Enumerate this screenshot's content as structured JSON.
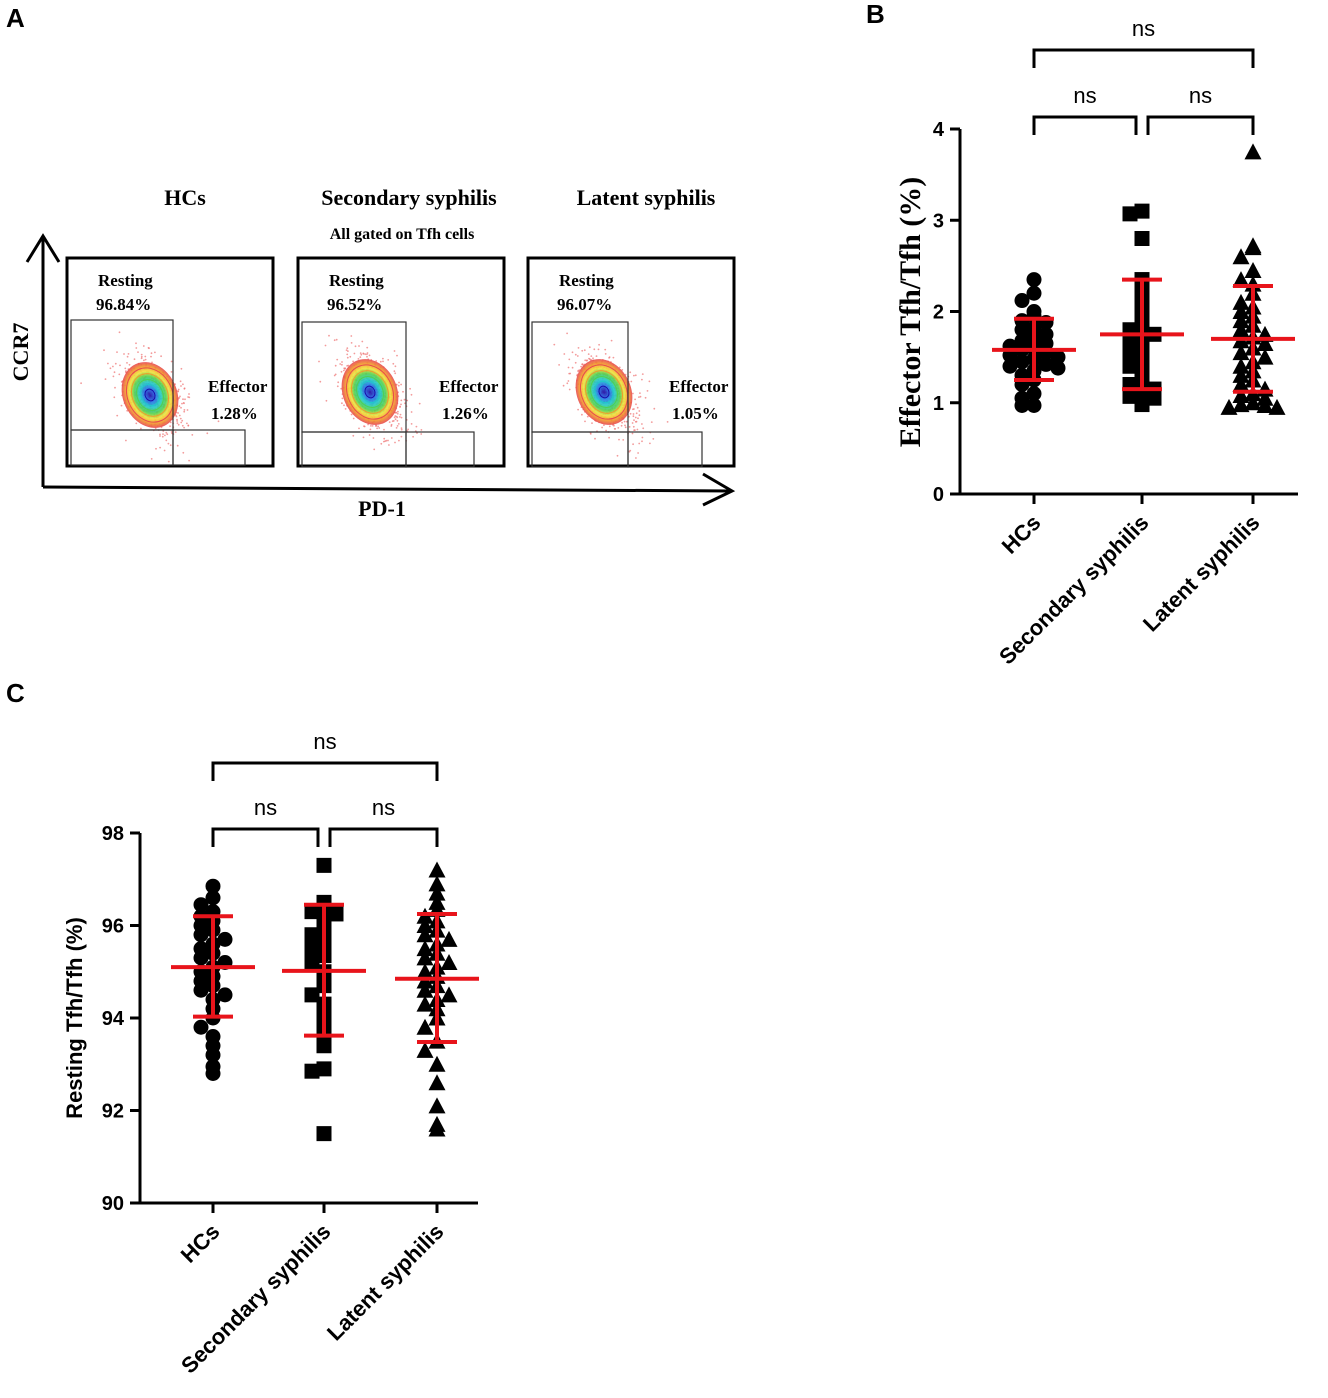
{
  "colors": {
    "ink": "#000000",
    "error_bar": "#e8141b",
    "gate_line": "#333333"
  },
  "panel_a": {
    "label": "A",
    "subtitle": "All gated on Tfh cells",
    "y_axis_label": "CCR7",
    "x_axis_label": "PD-1",
    "plots": [
      {
        "title": "HCs",
        "resting_label": "Resting",
        "resting_pct": "96.84%",
        "effector_label": "Effector",
        "effector_pct": "1.28%"
      },
      {
        "title": "Secondary syphilis",
        "resting_label": "Resting",
        "resting_pct": "96.52%",
        "effector_label": "Effector",
        "effector_pct": "1.26%"
      },
      {
        "title": "Latent syphilis",
        "resting_label": "Resting",
        "resting_pct": "96.07%",
        "effector_label": "Effector",
        "effector_pct": "1.05%"
      }
    ]
  },
  "chart_data": [
    {
      "panel": "B",
      "type": "scatter",
      "ylabel": "Effector Tfh/Tfh (%)",
      "ylim": [
        0,
        4
      ],
      "yticks": [
        "0",
        "1",
        "2",
        "3",
        "4"
      ],
      "categories": [
        "HCs",
        "Secondary syphilis",
        "Latent syphilis"
      ],
      "markers": [
        "circle",
        "square",
        "triangle"
      ],
      "series": [
        {
          "name": "HCs",
          "mean": 1.58,
          "sd_low": 1.25,
          "sd_high": 1.92,
          "values": [
            2.35,
            2.2,
            2.12,
            2.0,
            1.95,
            1.9,
            1.88,
            1.82,
            1.8,
            1.75,
            1.72,
            1.68,
            1.65,
            1.62,
            1.6,
            1.58,
            1.55,
            1.52,
            1.5,
            1.48,
            1.45,
            1.42,
            1.4,
            1.38,
            1.35,
            1.3,
            1.25,
            1.2,
            1.1,
            1.05,
            0.97,
            0.97
          ]
        },
        {
          "name": "Secondary syphilis",
          "mean": 1.75,
          "sd_low": 1.15,
          "sd_high": 2.35,
          "values": [
            3.1,
            3.07,
            2.8,
            2.35,
            2.2,
            2.05,
            1.95,
            1.85,
            1.8,
            1.75,
            1.7,
            1.65,
            1.55,
            1.5,
            1.45,
            1.4,
            1.3,
            1.25,
            1.2,
            1.15,
            1.1,
            1.07,
            1.05,
            0.98
          ]
        },
        {
          "name": "Latent syphilis",
          "mean": 1.7,
          "sd_low": 1.12,
          "sd_high": 2.28,
          "values": [
            3.75,
            2.72,
            2.7,
            2.6,
            2.45,
            2.35,
            2.3,
            2.2,
            2.1,
            2.05,
            2.0,
            1.95,
            1.9,
            1.85,
            1.8,
            1.75,
            1.72,
            1.68,
            1.65,
            1.6,
            1.55,
            1.5,
            1.45,
            1.4,
            1.35,
            1.3,
            1.25,
            1.2,
            1.15,
            1.1,
            1.08,
            1.05,
            1.0,
            0.98,
            0.97,
            0.95,
            0.95
          ]
        }
      ],
      "comparisons": [
        {
          "from": 0,
          "to": 2,
          "label": "ns",
          "level": 2
        },
        {
          "from": 0,
          "to": 1,
          "label": "ns",
          "level": 1
        },
        {
          "from": 1,
          "to": 2,
          "label": "ns",
          "level": 1
        }
      ]
    },
    {
      "panel": "C",
      "type": "scatter",
      "ylabel": "Resting Tfh/Tfh (%)",
      "ylim": [
        90,
        98
      ],
      "yticks": [
        "90",
        "92",
        "94",
        "96",
        "98"
      ],
      "categories": [
        "HCs",
        "Secondary syphilis",
        "Latent syphilis"
      ],
      "markers": [
        "circle",
        "square",
        "triangle"
      ],
      "series": [
        {
          "name": "HCs",
          "mean": 95.1,
          "sd_low": 94.03,
          "sd_high": 96.2,
          "values": [
            96.85,
            96.6,
            96.45,
            96.3,
            96.2,
            96.1,
            96.0,
            95.9,
            95.8,
            95.7,
            95.6,
            95.5,
            95.4,
            95.3,
            95.2,
            95.1,
            95.0,
            94.9,
            94.8,
            94.7,
            94.6,
            94.5,
            94.4,
            94.2,
            94.0,
            93.8,
            93.6,
            93.4,
            93.2,
            92.95,
            92.8
          ]
        },
        {
          "name": "Secondary syphilis",
          "mean": 95.02,
          "sd_low": 93.62,
          "sd_high": 96.45,
          "values": [
            97.3,
            96.5,
            96.35,
            96.3,
            96.25,
            96.1,
            95.9,
            95.8,
            95.65,
            95.5,
            95.35,
            95.2,
            95.0,
            94.85,
            94.7,
            94.5,
            94.3,
            94.0,
            93.7,
            93.4,
            92.9,
            92.85,
            91.5
          ]
        },
        {
          "name": "Latent syphilis",
          "mean": 94.85,
          "sd_low": 93.48,
          "sd_high": 96.25,
          "values": [
            97.2,
            96.9,
            96.7,
            96.5,
            96.35,
            96.2,
            96.1,
            96.0,
            95.9,
            95.8,
            95.7,
            95.6,
            95.5,
            95.4,
            95.3,
            95.2,
            95.1,
            95.0,
            94.9,
            94.8,
            94.7,
            94.6,
            94.5,
            94.4,
            94.3,
            94.2,
            94.0,
            93.8,
            93.5,
            93.3,
            93.0,
            92.6,
            92.1,
            91.7,
            91.6
          ]
        }
      ],
      "comparisons": [
        {
          "from": 0,
          "to": 2,
          "label": "ns",
          "level": 2
        },
        {
          "from": 0,
          "to": 1,
          "label": "ns",
          "level": 1
        },
        {
          "from": 1,
          "to": 2,
          "label": "ns",
          "level": 1
        }
      ]
    }
  ]
}
